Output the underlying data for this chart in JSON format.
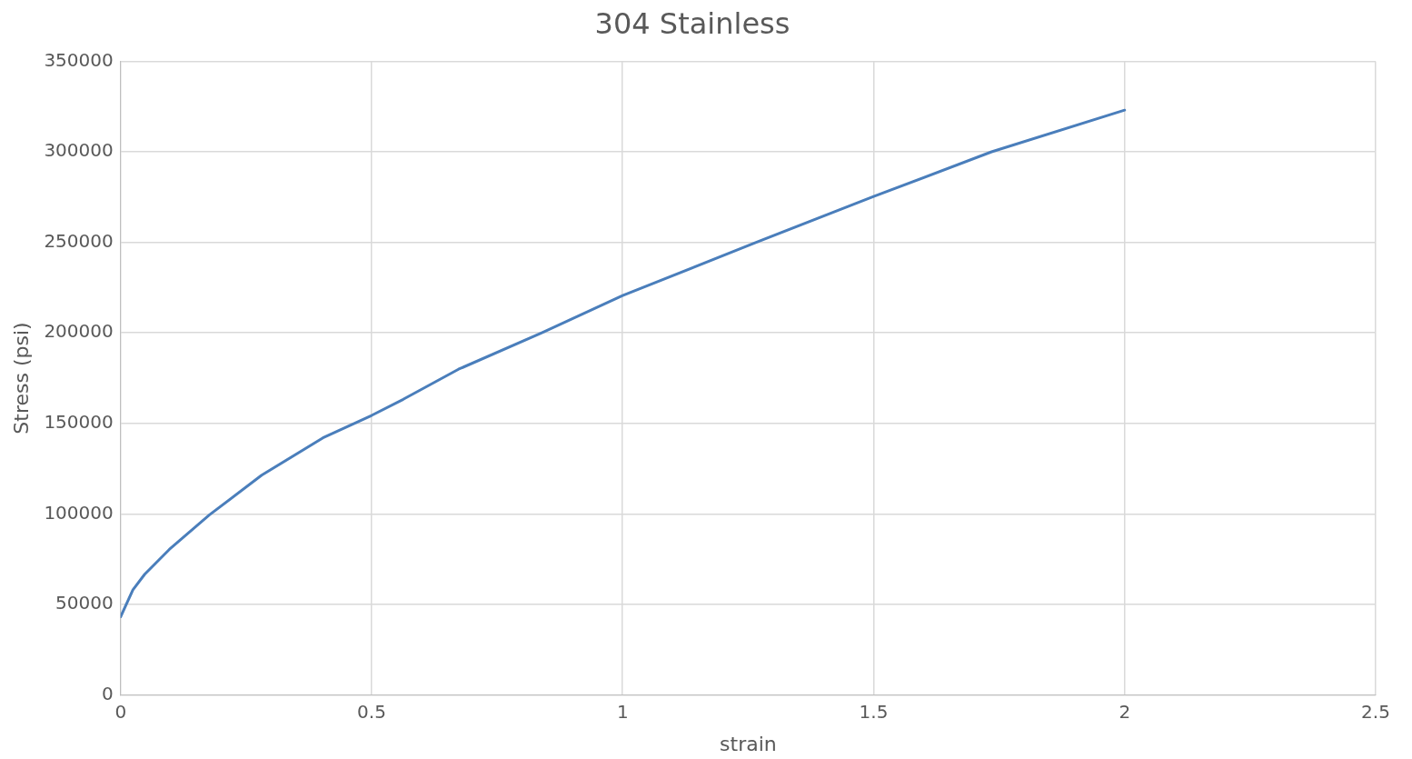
{
  "chart_data": {
    "type": "line",
    "title": "304 Stainless",
    "xlabel": "strain",
    "ylabel": "Stress (psi)",
    "series": [
      {
        "color": "#4a7ebb",
        "x": [
          0,
          0.0245,
          0.048,
          0.097,
          0.177,
          0.281,
          0.403,
          0.5,
          0.563,
          0.673,
          0.839,
          1,
          1.266,
          1.5,
          1.735,
          2
        ],
        "values": [
          43200,
          58100,
          66700,
          80400,
          99500,
          121400,
          142000,
          154400,
          163300,
          179900,
          200000,
          220600,
          250000,
          275300,
          300000,
          323000
        ]
      }
    ],
    "xlim": [
      0,
      2.5
    ],
    "xticks": [
      0,
      0.5,
      1,
      1.5,
      2,
      2.5
    ],
    "ylim": [
      0,
      350000
    ],
    "yticks": [
      0,
      50000,
      100000,
      150000,
      200000,
      250000,
      300000,
      350000
    ],
    "grid": true,
    "marker": "none",
    "line_style": "solid"
  }
}
